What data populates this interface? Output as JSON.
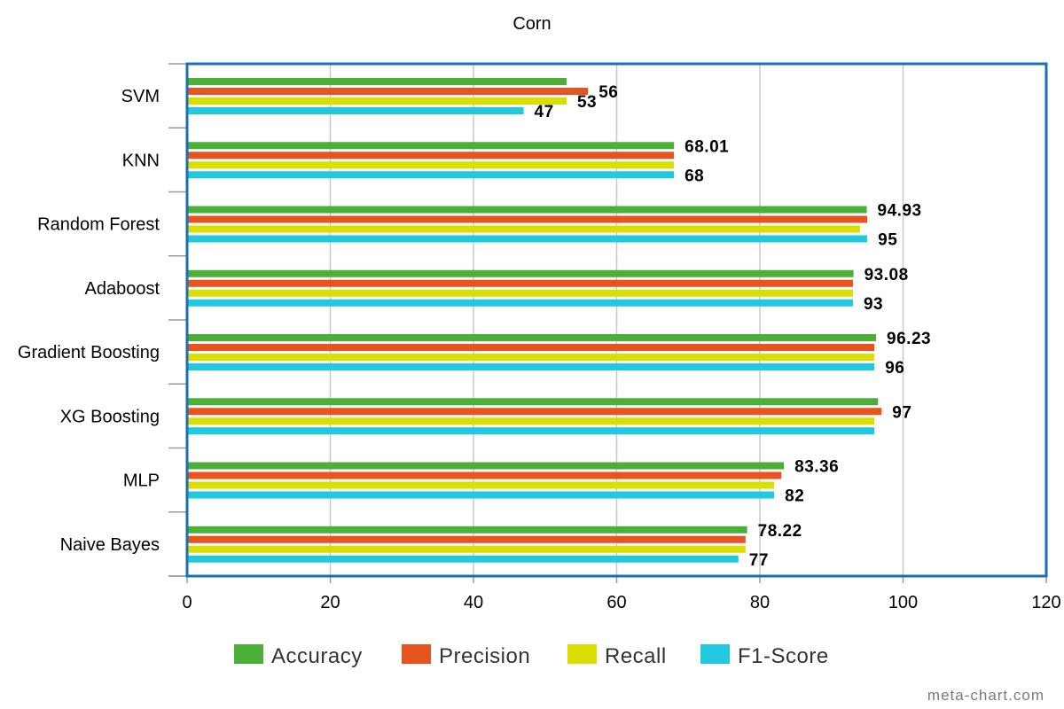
{
  "chart_data": {
    "type": "bar",
    "orientation": "horizontal",
    "title": "Corn",
    "categories": [
      "SVM",
      "KNN",
      "Random Forest",
      "Adaboost",
      "Gradient Boosting",
      "XG Boosting",
      "MLP",
      "Naive Bayes"
    ],
    "series": [
      {
        "name": "Accuracy",
        "color": "#4caf38",
        "values": [
          53,
          68.01,
          94.93,
          93.08,
          96.23,
          96.5,
          83.36,
          78.22
        ]
      },
      {
        "name": "Precision",
        "color": "#e8541f",
        "values": [
          56,
          68,
          95,
          93,
          96,
          97,
          83,
          78
        ]
      },
      {
        "name": "Recall",
        "color": "#d9df00",
        "values": [
          53,
          68,
          94,
          93,
          96,
          96,
          82,
          78
        ]
      },
      {
        "name": "F1-Score",
        "color": "#22c8e0",
        "values": [
          47,
          68,
          95,
          93,
          96,
          96,
          82,
          77
        ]
      }
    ],
    "data_labels": [
      {
        "category": "SVM",
        "series": "Precision",
        "text": "56"
      },
      {
        "category": "SVM",
        "series": "Recall",
        "text": "53"
      },
      {
        "category": "SVM",
        "series": "F1-Score",
        "text": "47"
      },
      {
        "category": "KNN",
        "series": "Accuracy",
        "text": "68.01"
      },
      {
        "category": "KNN",
        "series": "F1-Score",
        "text": "68"
      },
      {
        "category": "Random Forest",
        "series": "Accuracy",
        "text": "94.93"
      },
      {
        "category": "Random Forest",
        "series": "F1-Score",
        "text": "95"
      },
      {
        "category": "Adaboost",
        "series": "Accuracy",
        "text": "93.08"
      },
      {
        "category": "Adaboost",
        "series": "F1-Score",
        "text": "93"
      },
      {
        "category": "Gradient Boosting",
        "series": "Accuracy",
        "text": "96.23"
      },
      {
        "category": "Gradient Boosting",
        "series": "F1-Score",
        "text": "96"
      },
      {
        "category": "XG Boosting",
        "series": "Precision",
        "text": "97"
      },
      {
        "category": "MLP",
        "series": "Accuracy",
        "text": "83.36"
      },
      {
        "category": "MLP",
        "series": "F1-Score",
        "text": "82"
      },
      {
        "category": "Naive Bayes",
        "series": "Accuracy",
        "text": "78.22"
      },
      {
        "category": "Naive Bayes",
        "series": "F1-Score",
        "text": "77"
      }
    ],
    "xlim": [
      0,
      120
    ],
    "xticks": [
      "0",
      "20",
      "40",
      "60",
      "80",
      "100",
      "120"
    ],
    "grid": true,
    "legend_position": "bottom",
    "frame_color": "#1a6fb5",
    "grid_color": "#c8c8c8"
  },
  "watermark": "meta-chart.com"
}
